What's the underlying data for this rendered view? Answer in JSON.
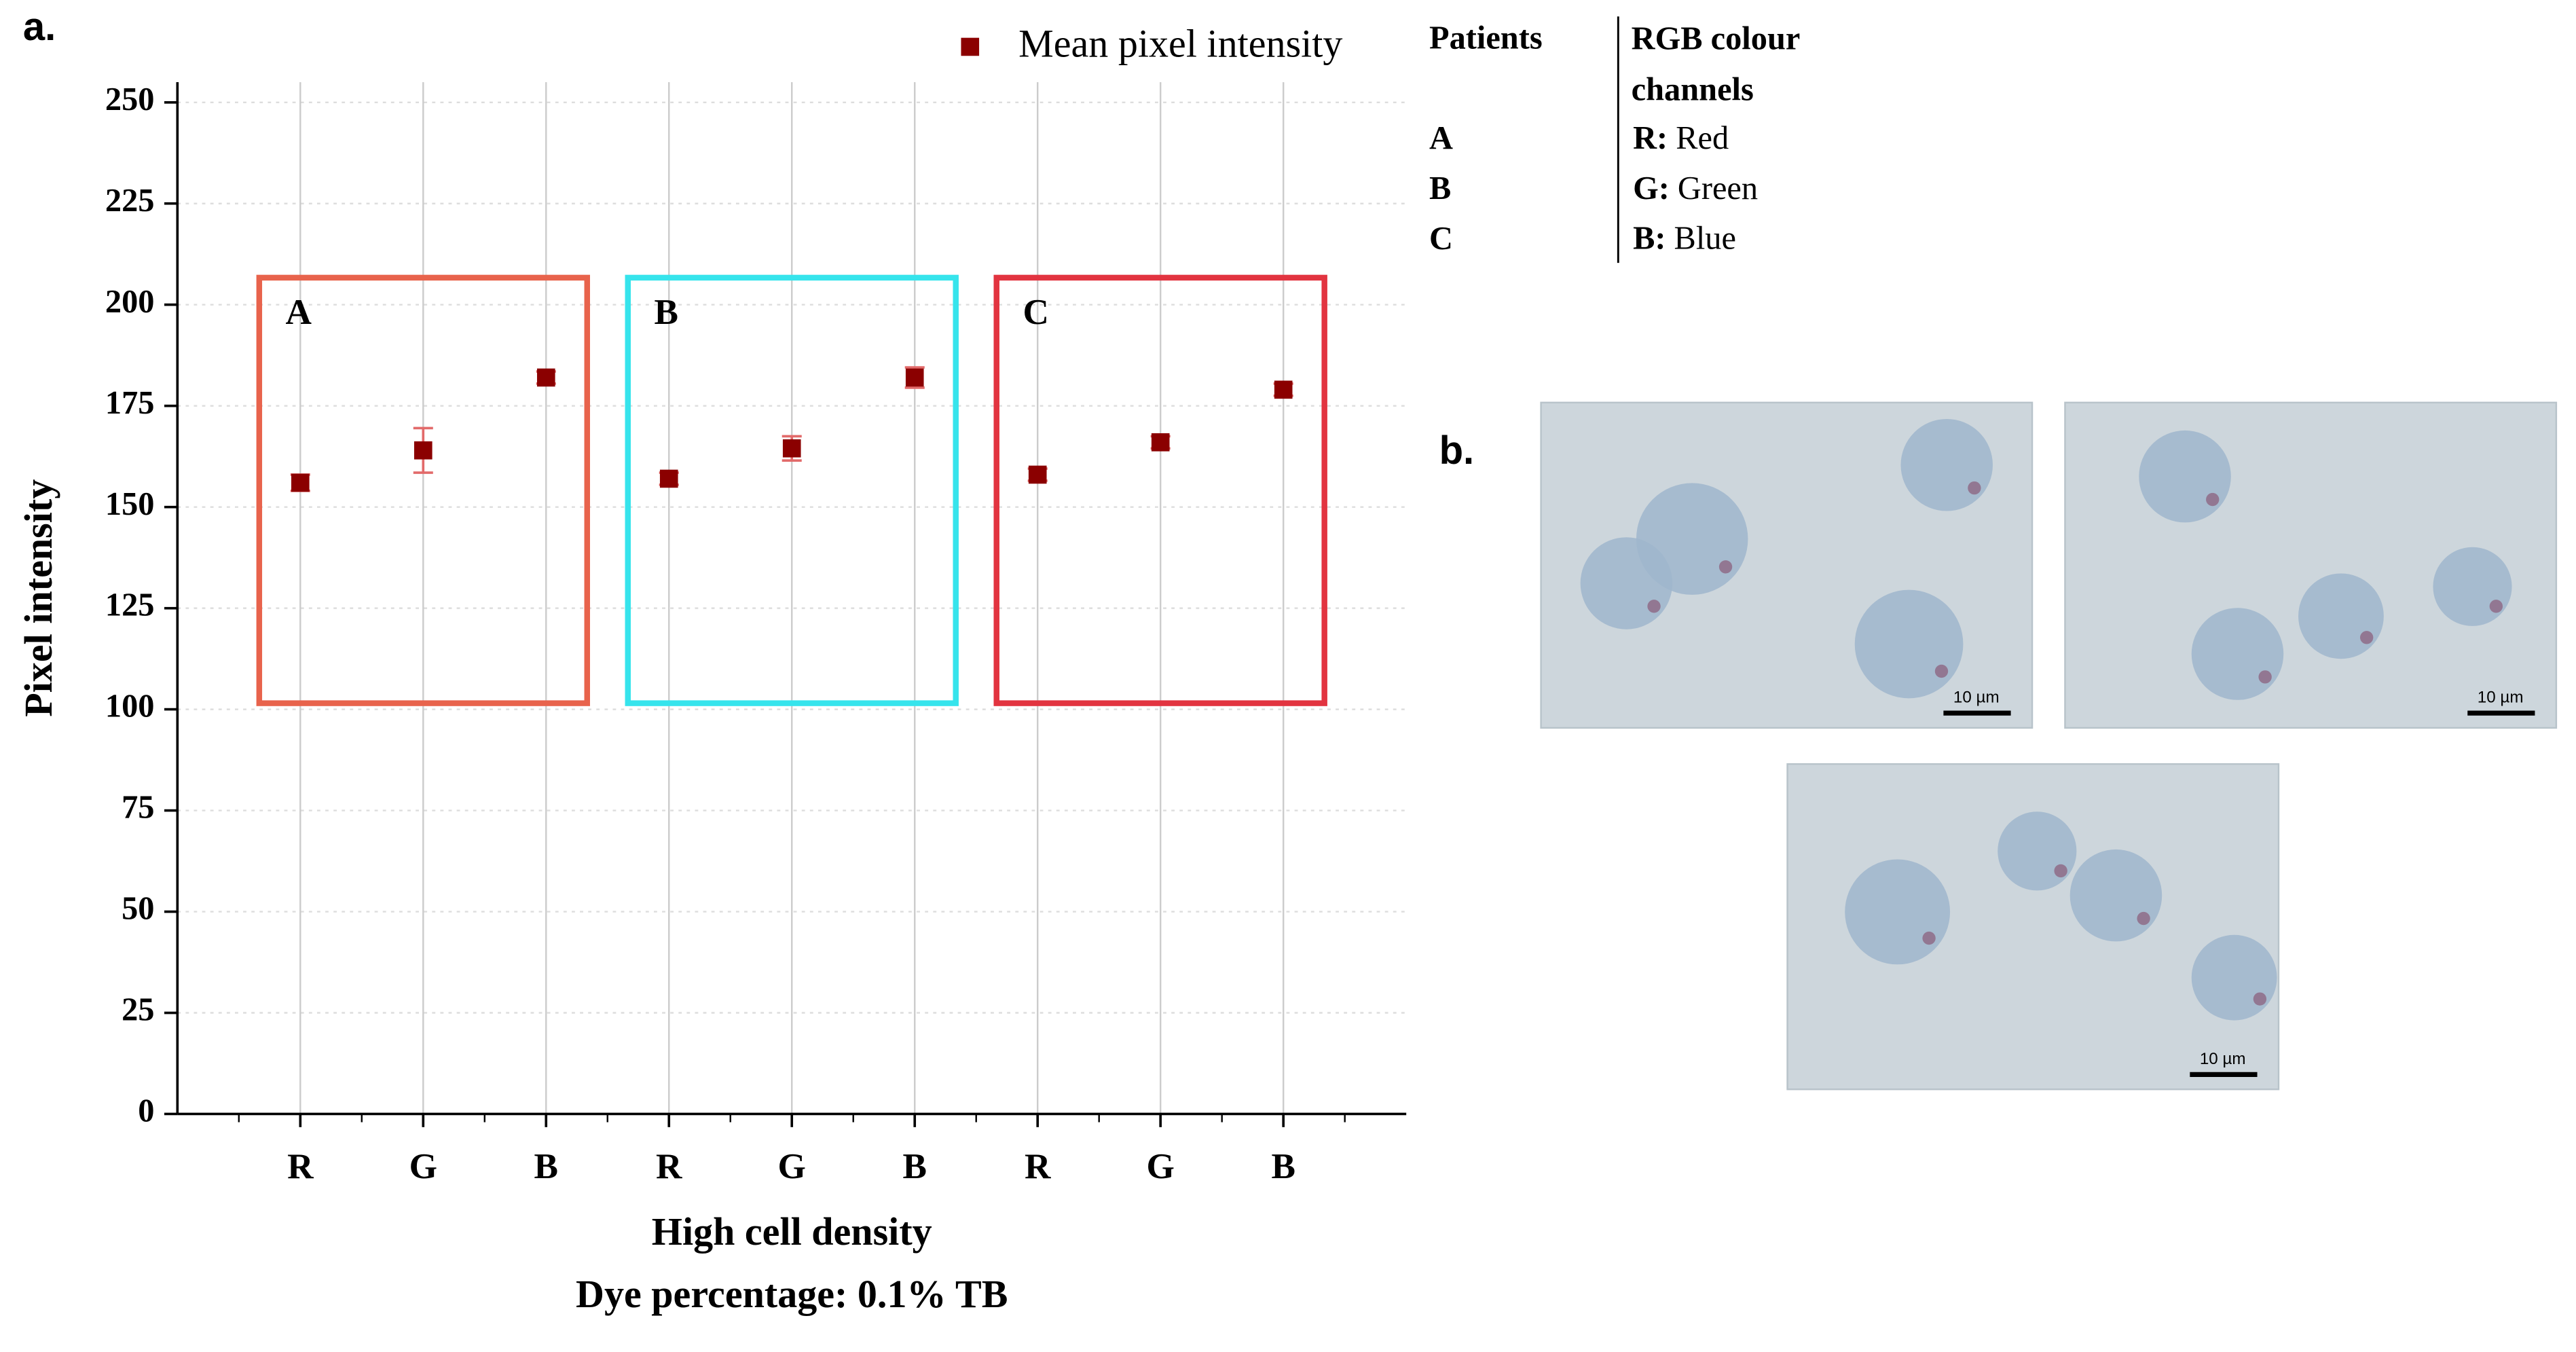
{
  "panel_labels": [
    "a.",
    "b."
  ],
  "chart_data": {
    "type": "scatter",
    "categories": [
      "R",
      "G",
      "B",
      "R",
      "G",
      "B",
      "R",
      "G",
      "B"
    ],
    "series": [
      {
        "name": "Mean pixel intensity",
        "color": "#8b0000",
        "error_color": "#e26a6a",
        "values": [
          156,
          164,
          182,
          157,
          164.5,
          182,
          158,
          166,
          179
        ],
        "errors": [
          2,
          5.5,
          1.5,
          1.5,
          3,
          2.5,
          1.5,
          1.5,
          1.5
        ]
      }
    ],
    "groups": [
      {
        "label": "A",
        "color": "#e8634c"
      },
      {
        "label": "B",
        "color": "#36e4ec"
      },
      {
        "label": "C",
        "color": "#e23440"
      }
    ],
    "ylabel": "Pixel intensity",
    "xlabel": [
      "High cell density",
      "Dye percentage: 0.1% TB"
    ],
    "ylim": [
      0,
      255
    ],
    "yticks": [
      0,
      25,
      50,
      75,
      100,
      125,
      150,
      175,
      200,
      225,
      250
    ],
    "grid": true,
    "legend": "top-right"
  },
  "key": {
    "headers": [
      "Patients",
      "RGB colour channels"
    ],
    "rows": [
      [
        "A",
        "R:",
        "Red"
      ],
      [
        "B",
        "G:",
        "Green"
      ],
      [
        "C",
        "B:",
        "Blue"
      ]
    ]
  },
  "images": [
    {
      "scale_bar": "10 µm"
    },
    {
      "scale_bar": "10 µm"
    },
    {
      "scale_bar": "10 µm"
    }
  ]
}
